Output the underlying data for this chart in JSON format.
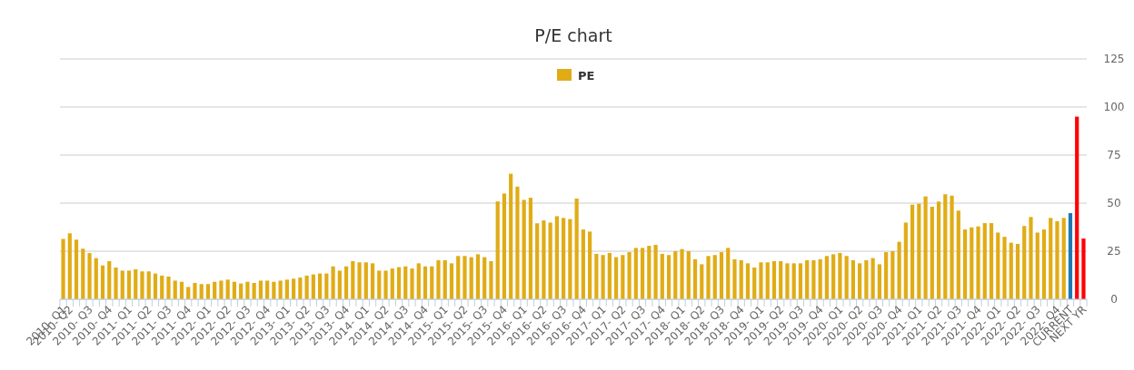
{
  "chart_data": {
    "type": "bar",
    "title": "P/E chart",
    "legend": "top",
    "grid": "y",
    "ylim": [
      0,
      125
    ],
    "yticks": [
      0,
      25,
      50,
      75,
      100,
      125
    ],
    "categories": [
      "2010- Q1",
      "2010- Q2",
      null,
      null,
      "2010- Q3",
      null,
      null,
      "2010- Q4",
      null,
      null,
      "2011- Q1",
      null,
      null,
      "2011- Q2",
      null,
      null,
      "2011- Q3",
      null,
      null,
      "2011- Q4",
      null,
      null,
      "2012- Q1",
      null,
      null,
      "2012- Q2",
      null,
      null,
      "2012- Q3",
      null,
      null,
      "2012- Q4",
      null,
      null,
      "2013- Q1",
      null,
      null,
      "2013- Q2",
      null,
      null,
      "2013- Q3",
      null,
      null,
      "2013- Q4",
      null,
      null,
      "2014- Q1",
      null,
      null,
      "2014- Q2",
      null,
      null,
      "2014- Q3",
      null,
      null,
      "2014- Q4",
      null,
      null,
      "2015- Q1",
      null,
      null,
      "2015- Q2",
      null,
      null,
      "2015- Q3",
      null,
      null,
      "2015- Q4",
      null,
      null,
      "2016- Q1",
      null,
      null,
      "2016- Q2",
      null,
      null,
      "2016- Q3",
      null,
      null,
      "2016- Q4",
      null,
      null,
      "2017- Q1",
      null,
      null,
      "2017- Q2",
      null,
      null,
      "2017- Q3",
      null,
      null,
      "2017- Q4",
      null,
      null,
      "2018- Q1",
      null,
      null,
      "2018- Q2",
      null,
      null,
      "2018- Q3",
      null,
      null,
      "2018- Q4",
      null,
      null,
      "2019- Q1",
      null,
      null,
      "2019- Q2",
      null,
      null,
      "2019- Q3",
      null,
      null,
      "2019- Q4",
      null,
      null,
      "2020- Q1",
      null,
      null,
      "2020- Q2",
      null,
      null,
      "2020- Q3",
      null,
      null,
      "2020- Q4",
      null,
      null,
      "2021- Q1",
      null,
      null,
      "2021- Q2",
      null,
      null,
      "2021- Q3",
      null,
      null,
      "2021- Q4",
      null,
      null,
      "2022- Q1",
      null,
      null,
      "2022- Q2",
      null,
      null,
      "2022- Q3",
      null,
      null,
      "2022- Q4",
      null,
      "CURRENT",
      null,
      "NEXT YR"
    ],
    "series": [
      {
        "name": "PE",
        "color": "#e0ac16",
        "values": [
          31.4,
          34.3,
          31,
          26.3,
          24,
          21.4,
          17.6,
          19.8,
          16.5,
          14.9,
          14.9,
          15.6,
          14.5,
          14.5,
          13.4,
          12.3,
          11.8,
          9.7,
          9.1,
          6.4,
          8.5,
          7.9,
          7.9,
          9.1,
          9.7,
          10.2,
          9.1,
          8.2,
          9.1,
          8.5,
          9.7,
          9.7,
          9.1,
          9.7,
          10.2,
          10.7,
          11.3,
          12.3,
          12.9,
          13.4,
          13.4,
          17.1,
          14.9,
          17.1,
          19.8,
          19.2,
          19.2,
          18.7,
          14.9,
          14.9,
          16,
          16.7,
          17.1,
          16,
          18.7,
          17.1,
          17.1,
          20.3,
          20.3,
          18.7,
          22.5,
          22.5,
          21.9,
          23.4,
          21.9,
          19.8,
          50.9,
          55,
          65.3,
          58.6,
          51.7,
          52.8,
          39.5,
          41,
          39.9,
          43.2,
          42.3,
          41.7,
          52.4,
          36.3,
          35.2,
          23.6,
          23,
          24.1,
          21.9,
          23,
          24.5,
          26.7,
          26.7,
          27.8,
          28.3,
          23.6,
          23,
          25,
          26.1,
          25,
          20.8,
          18.2,
          22.5,
          23,
          24.5,
          26.7,
          20.8,
          20.3,
          18.7,
          16.5,
          19.2,
          19.2,
          19.8,
          19.8,
          18.7,
          18.7,
          18.7,
          20.3,
          20.3,
          20.8,
          22.5,
          23.4,
          24.1,
          22.5,
          20.3,
          18.7,
          20.3,
          21.4,
          18.2,
          24.5,
          25,
          29.9,
          39.9,
          49.2,
          49.7,
          53.5,
          48.1,
          50.8,
          54.6,
          53.9,
          46.1,
          36.3,
          37.4,
          37.9,
          39.6,
          39.6,
          34.7,
          32.5,
          29.4,
          28.8,
          38.1,
          42.8,
          34.7,
          36.3,
          42.3,
          40.6,
          42.3,
          44.8,
          95,
          31.6
        ],
        "colors": [
          "#e0ac16",
          "#e0ac16",
          "#e0ac16",
          "#e0ac16",
          "#e0ac16",
          "#e0ac16",
          "#e0ac16",
          "#e0ac16",
          "#e0ac16",
          "#e0ac16",
          "#e0ac16",
          "#e0ac16",
          "#e0ac16",
          "#e0ac16",
          "#e0ac16",
          "#e0ac16",
          "#e0ac16",
          "#e0ac16",
          "#e0ac16",
          "#e0ac16",
          "#e0ac16",
          "#e0ac16",
          "#e0ac16",
          "#e0ac16",
          "#e0ac16",
          "#e0ac16",
          "#e0ac16",
          "#e0ac16",
          "#e0ac16",
          "#e0ac16",
          "#e0ac16",
          "#e0ac16",
          "#e0ac16",
          "#e0ac16",
          "#e0ac16",
          "#e0ac16",
          "#e0ac16",
          "#e0ac16",
          "#e0ac16",
          "#e0ac16",
          "#e0ac16",
          "#e0ac16",
          "#e0ac16",
          "#e0ac16",
          "#e0ac16",
          "#e0ac16",
          "#e0ac16",
          "#e0ac16",
          "#e0ac16",
          "#e0ac16",
          "#e0ac16",
          "#e0ac16",
          "#e0ac16",
          "#e0ac16",
          "#e0ac16",
          "#e0ac16",
          "#e0ac16",
          "#e0ac16",
          "#e0ac16",
          "#e0ac16",
          "#e0ac16",
          "#e0ac16",
          "#e0ac16",
          "#e0ac16",
          "#e0ac16",
          "#e0ac16",
          "#e0ac16",
          "#e0ac16",
          "#e0ac16",
          "#e0ac16",
          "#e0ac16",
          "#e0ac16",
          "#e0ac16",
          "#e0ac16",
          "#e0ac16",
          "#e0ac16",
          "#e0ac16",
          "#e0ac16",
          "#e0ac16",
          "#e0ac16",
          "#e0ac16",
          "#e0ac16",
          "#e0ac16",
          "#e0ac16",
          "#e0ac16",
          "#e0ac16",
          "#e0ac16",
          "#e0ac16",
          "#e0ac16",
          "#e0ac16",
          "#e0ac16",
          "#e0ac16",
          "#e0ac16",
          "#e0ac16",
          "#e0ac16",
          "#e0ac16",
          "#e0ac16",
          "#e0ac16",
          "#e0ac16",
          "#e0ac16",
          "#e0ac16",
          "#e0ac16",
          "#e0ac16",
          "#e0ac16",
          "#e0ac16",
          "#e0ac16",
          "#e0ac16",
          "#e0ac16",
          "#e0ac16",
          "#e0ac16",
          "#e0ac16",
          "#e0ac16",
          "#e0ac16",
          "#e0ac16",
          "#e0ac16",
          "#e0ac16",
          "#e0ac16",
          "#e0ac16",
          "#e0ac16",
          "#e0ac16",
          "#e0ac16",
          "#e0ac16",
          "#e0ac16",
          "#e0ac16",
          "#e0ac16",
          "#e0ac16",
          "#e0ac16",
          "#e0ac16",
          "#e0ac16",
          "#e0ac16",
          "#e0ac16",
          "#e0ac16",
          "#e0ac16",
          "#e0ac16",
          "#e0ac16",
          "#e0ac16",
          "#e0ac16",
          "#e0ac16",
          "#e0ac16",
          "#e0ac16",
          "#e0ac16",
          "#e0ac16",
          "#e0ac16",
          "#e0ac16",
          "#e0ac16",
          "#e0ac16",
          "#e0ac16",
          "#e0ac16",
          "#e0ac16",
          "#e0ac16",
          "#e0ac16",
          "#e0ac16",
          "#e0ac16",
          "#1f78b4",
          "#ff0000",
          "#ff0000"
        ]
      }
    ]
  }
}
